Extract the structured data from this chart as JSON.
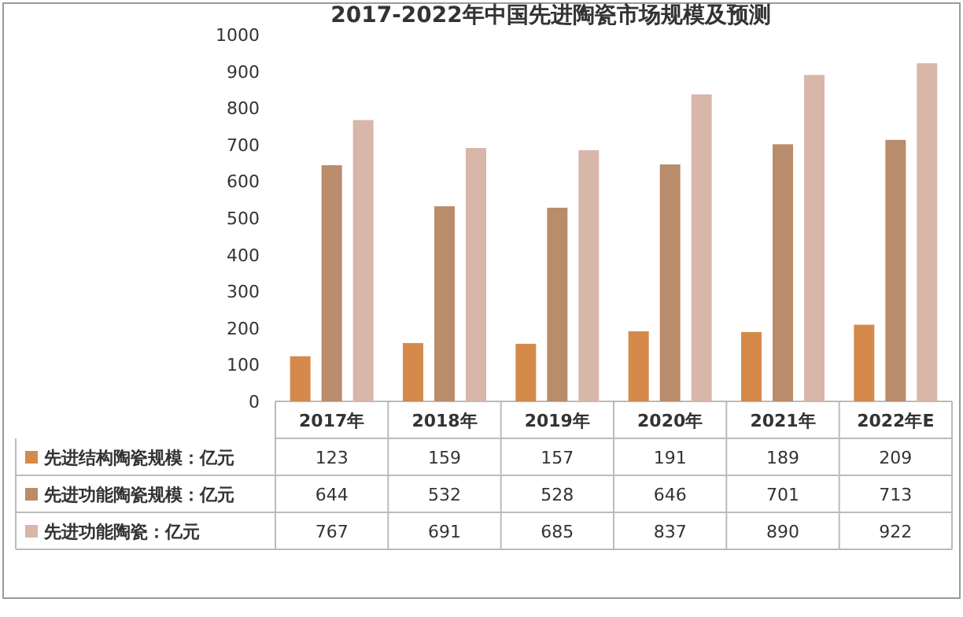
{
  "chart_data": {
    "type": "bar",
    "title": "2017-2022年中国先进陶瓷市场规模及预测",
    "categories": [
      "2017年",
      "2018年",
      "2019年",
      "2020年",
      "2021年",
      "2022年E"
    ],
    "series": [
      {
        "name": "先进结构陶瓷规模：亿元",
        "color": "#d58a4b",
        "values": [
          123,
          159,
          157,
          191,
          189,
          209
        ]
      },
      {
        "name": "先进功能陶瓷规模：亿元",
        "color": "#b98c6c",
        "values": [
          644,
          532,
          528,
          646,
          701,
          713
        ]
      },
      {
        "name": "先进功能陶瓷：亿元",
        "color": "#d8b6aa",
        "values": [
          767,
          691,
          685,
          837,
          890,
          922
        ]
      }
    ],
    "ylim": [
      0,
      1000
    ],
    "yticks": [
      0,
      100,
      200,
      300,
      400,
      500,
      600,
      700,
      800,
      900,
      1000
    ],
    "grid": false,
    "legend": "bottom",
    "data_labels": true
  }
}
